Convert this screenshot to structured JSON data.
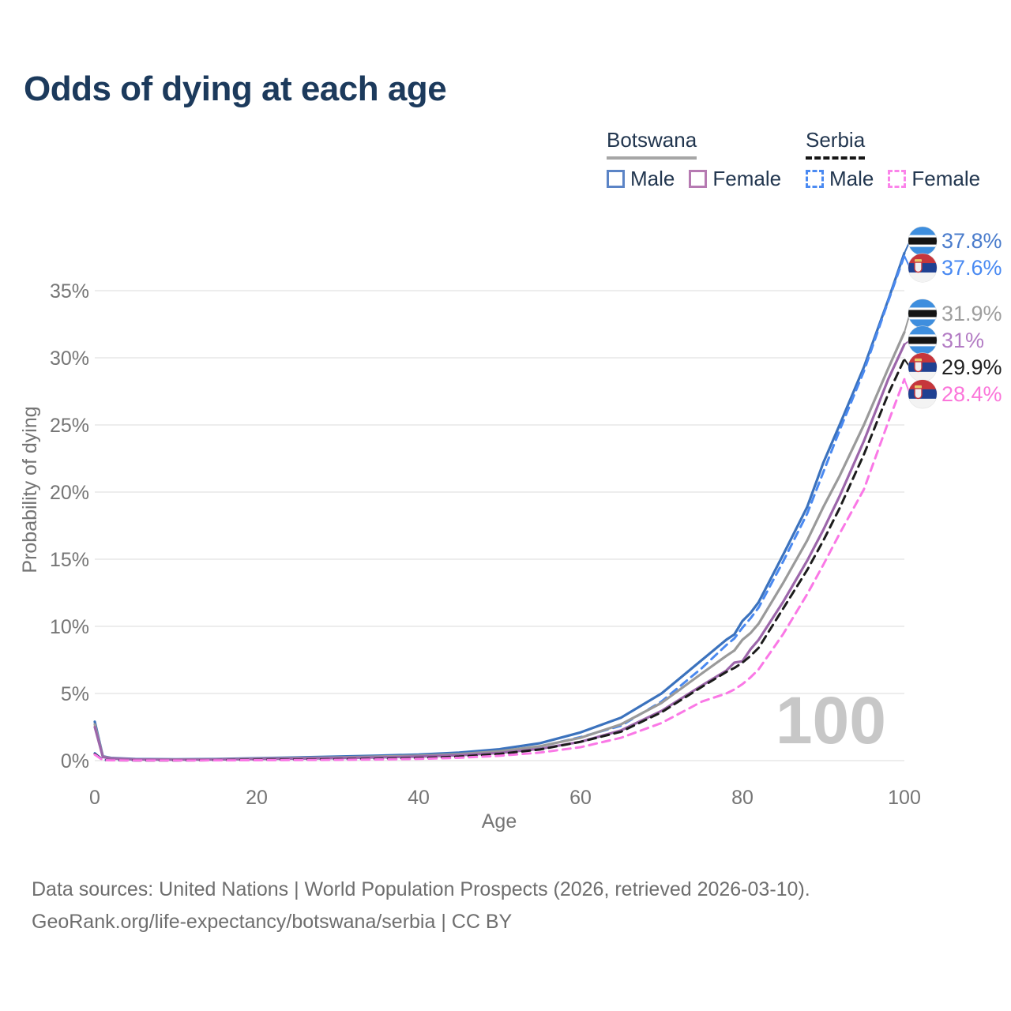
{
  "title": "Odds of dying at each age",
  "legend": {
    "groups": [
      {
        "name": "Botswana",
        "line_style": "solid",
        "underline_color": "#a6a6a6",
        "items": [
          {
            "label": "Male",
            "color": "#5b84c6",
            "style": "solid"
          },
          {
            "label": "Female",
            "color": "#b67ab2",
            "style": "solid"
          }
        ]
      },
      {
        "name": "Serbia",
        "line_style": "dashed",
        "underline_color": "#161616",
        "items": [
          {
            "label": "Male",
            "color": "#4a8af2",
            "style": "dashed"
          },
          {
            "label": "Female",
            "color": "#fb84ea",
            "style": "dashed"
          }
        ]
      }
    ]
  },
  "chart_data": {
    "type": "line",
    "title": "Odds of dying at each age",
    "xlabel": "Age",
    "ylabel": "Probability of dying",
    "xlim": [
      0,
      100
    ],
    "ylim": [
      0,
      38
    ],
    "grid": "horizontal-only",
    "legend_position": "top-right",
    "watermark": "100",
    "x_ticks": [
      0,
      20,
      40,
      60,
      80,
      100
    ],
    "y_tick_values": [
      0,
      5,
      10,
      15,
      20,
      25,
      30,
      35
    ],
    "y_tick_labels": [
      "0%",
      "5%",
      "10%",
      "15%",
      "20%",
      "25%",
      "30%",
      "35%"
    ],
    "ages": [
      0,
      1,
      2,
      5,
      10,
      15,
      20,
      25,
      30,
      35,
      40,
      45,
      50,
      55,
      60,
      65,
      70,
      75,
      78,
      79,
      80,
      81,
      82,
      85,
      88,
      90,
      92,
      95,
      98,
      100
    ],
    "series": [
      {
        "name": "Botswana Male",
        "country": "Botswana",
        "sex": "Male",
        "color": "#3b72bd",
        "label_color": "#4a7ccc",
        "dash": "solid",
        "flag": "botswana",
        "end_label": "37.8%",
        "values": [
          2.9,
          0.32,
          0.2,
          0.12,
          0.1,
          0.12,
          0.18,
          0.24,
          0.3,
          0.37,
          0.45,
          0.6,
          0.85,
          1.3,
          2.1,
          3.2,
          5.0,
          7.5,
          9.0,
          9.4,
          10.4,
          11.0,
          11.8,
          15.3,
          18.9,
          22.2,
          25.0,
          29.3,
          34.3,
          37.8
        ]
      },
      {
        "name": "Serbia Male",
        "country": "Serbia",
        "sex": "Male",
        "color": "#4a89f0",
        "label_color": "#4a8af2",
        "dash": "dashed",
        "flag": "serbia",
        "end_label": "37.6%",
        "values": [
          0.55,
          0.05,
          0.03,
          0.02,
          0.02,
          0.04,
          0.08,
          0.1,
          0.12,
          0.16,
          0.24,
          0.38,
          0.62,
          1.05,
          1.75,
          2.6,
          4.4,
          6.9,
          8.6,
          9.1,
          9.9,
          10.6,
          11.4,
          14.8,
          18.4,
          21.5,
          24.6,
          29.0,
          34.2,
          37.6
        ]
      },
      {
        "name": "Botswana Both sexes",
        "country": "Botswana",
        "sex": "Both",
        "color": "#9a9a9a",
        "label_color": "#9e9e9e",
        "dash": "solid",
        "flag": "botswana",
        "end_label": "31.9%",
        "values": [
          2.7,
          0.3,
          0.18,
          0.1,
          0.08,
          0.1,
          0.15,
          0.19,
          0.24,
          0.3,
          0.37,
          0.49,
          0.7,
          1.07,
          1.7,
          2.7,
          4.3,
          6.5,
          7.8,
          8.2,
          9.0,
          9.5,
          10.2,
          13.2,
          16.4,
          18.9,
          21.2,
          25.0,
          29.2,
          31.9
        ]
      },
      {
        "name": "Botswana Female",
        "country": "Botswana",
        "sex": "Female",
        "color": "#9c66aa",
        "label_color": "#b37cc4",
        "dash": "solid",
        "flag": "botswana",
        "end_label": "31%",
        "values": [
          2.5,
          0.27,
          0.16,
          0.09,
          0.07,
          0.08,
          0.12,
          0.15,
          0.19,
          0.24,
          0.3,
          0.4,
          0.57,
          0.88,
          1.4,
          2.25,
          3.7,
          5.6,
          6.7,
          7.3,
          7.4,
          8.3,
          9.0,
          11.8,
          14.9,
          17.2,
          19.7,
          23.8,
          28.4,
          31.0
        ]
      },
      {
        "name": "Serbia Both sexes",
        "country": "Serbia",
        "sex": "Both",
        "color": "#1c1c1c",
        "label_color": "#222222",
        "dash": "dashed",
        "flag": "serbia",
        "end_label": "29.9%",
        "values": [
          0.5,
          0.045,
          0.027,
          0.018,
          0.018,
          0.03,
          0.06,
          0.08,
          0.1,
          0.13,
          0.19,
          0.3,
          0.5,
          0.83,
          1.4,
          2.15,
          3.6,
          5.5,
          6.6,
          6.9,
          7.3,
          7.8,
          8.4,
          11.3,
          14.2,
          16.4,
          18.8,
          22.8,
          27.3,
          29.9
        ]
      },
      {
        "name": "Serbia Female",
        "country": "Serbia",
        "sex": "Female",
        "color": "#fa78e6",
        "label_color": "#fb76da",
        "dash": "dashed",
        "flag": "serbia",
        "end_label": "28.4%",
        "values": [
          0.45,
          0.04,
          0.024,
          0.015,
          0.015,
          0.02,
          0.03,
          0.045,
          0.06,
          0.085,
          0.13,
          0.21,
          0.36,
          0.6,
          1.0,
          1.7,
          2.8,
          4.4,
          5.0,
          5.3,
          5.7,
          6.2,
          6.8,
          9.4,
          12.4,
          14.6,
          16.9,
          20.2,
          25.2,
          28.4
        ]
      }
    ]
  },
  "footer": {
    "line1": "Data sources: United Nations | World Population Prospects (2026, retrieved 2026-03-10).",
    "line2": "GeoRank.org/life-expectancy/botswana/serbia | CC BY"
  }
}
